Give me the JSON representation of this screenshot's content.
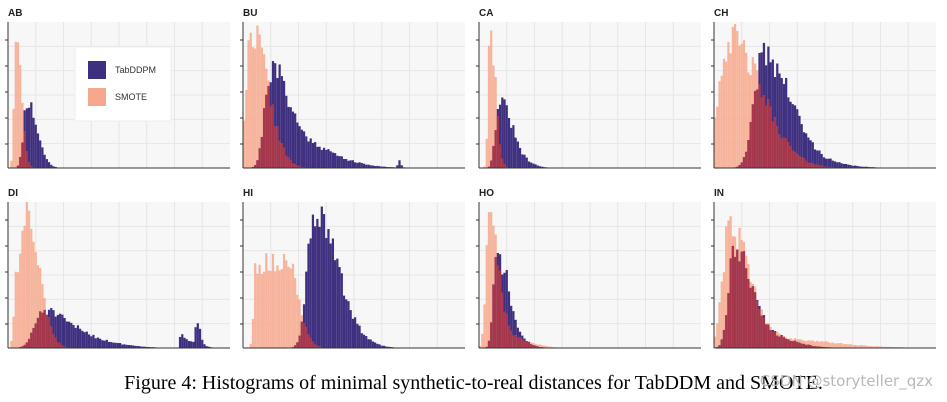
{
  "caption": "Figure 4: Histograms of minimal synthetic-to-real distances for TabDDM and SMOTE.",
  "watermark": "CSDN @storyteller_qzx",
  "colors": {
    "tabddpm": "#3f2f7f",
    "smote": "#f7a88c",
    "overlap": "#a02b44",
    "panel_bg": "#f7f7f7",
    "grid": "#e6e6e6"
  },
  "chart_data": [
    {
      "id": "AB",
      "title": "AB",
      "type": "histogram",
      "bins": 100,
      "xlim": [
        0,
        1
      ],
      "ylim": [
        0,
        1
      ],
      "grid": true,
      "legend": {
        "placement": "top-left",
        "entries": [
          {
            "label": "TabDDPM",
            "color": "#3f2f7f"
          },
          {
            "label": "SMOTE",
            "color": "#f7a88c"
          }
        ]
      },
      "series": [
        {
          "name": "TabDDPM",
          "components": [
            {
              "center": 0.085,
              "width": 0.028,
              "height": 0.46
            }
          ],
          "seed": 11
        },
        {
          "name": "SMOTE",
          "components": [
            {
              "center": 0.035,
              "width": 0.015,
              "height": 0.97
            }
          ],
          "seed": 12
        }
      ]
    },
    {
      "id": "BU",
      "title": "BU",
      "type": "histogram",
      "bins": 100,
      "xlim": [
        0,
        1
      ],
      "ylim": [
        0,
        1
      ],
      "grid": true,
      "series": [
        {
          "name": "TabDDPM",
          "components": [
            {
              "center": 0.12,
              "width": 0.045,
              "height": 0.6
            },
            {
              "center": 0.2,
              "width": 0.09,
              "height": 0.18
            },
            {
              "center": 0.34,
              "width": 0.1,
              "height": 0.04
            },
            {
              "center": 0.7,
              "width": 0.006,
              "height": 0.05
            }
          ],
          "seed": 21
        },
        {
          "name": "SMOTE",
          "components": [
            {
              "center": 0.04,
              "width": 0.045,
              "height": 0.95
            }
          ],
          "seed": 22
        }
      ]
    },
    {
      "id": "CA",
      "title": "CA",
      "type": "histogram",
      "bins": 100,
      "xlim": [
        0,
        1
      ],
      "ylim": [
        0,
        1
      ],
      "grid": true,
      "series": [
        {
          "name": "TabDDPM",
          "components": [
            {
              "center": 0.09,
              "width": 0.03,
              "height": 0.45
            },
            {
              "center": 0.15,
              "width": 0.04,
              "height": 0.08
            }
          ],
          "seed": 31
        },
        {
          "name": "SMOTE",
          "components": [
            {
              "center": 0.05,
              "width": 0.015,
              "height": 0.95
            }
          ],
          "seed": 32
        }
      ]
    },
    {
      "id": "CH",
      "title": "CH",
      "type": "histogram",
      "bins": 100,
      "xlim": [
        0,
        1
      ],
      "ylim": [
        0,
        1
      ],
      "grid": true,
      "series": [
        {
          "name": "TabDDPM",
          "components": [
            {
              "center": 0.22,
              "width": 0.07,
              "height": 0.77
            },
            {
              "center": 0.35,
              "width": 0.1,
              "height": 0.07
            }
          ],
          "seed": 41
        },
        {
          "name": "SMOTE",
          "components": [
            {
              "center": 0.07,
              "width": 0.09,
              "height": 0.88
            }
          ],
          "seed": 42
        }
      ]
    },
    {
      "id": "DI",
      "title": "DI",
      "type": "histogram",
      "bins": 100,
      "xlim": [
        0,
        1
      ],
      "ylim": [
        0,
        1
      ],
      "grid": true,
      "series": [
        {
          "name": "TabDDPM",
          "components": [
            {
              "center": 0.16,
              "width": 0.07,
              "height": 0.26
            },
            {
              "center": 0.35,
              "width": 0.09,
              "height": 0.05
            },
            {
              "center": 0.78,
              "width": 0.01,
              "height": 0.1
            },
            {
              "center": 0.85,
              "width": 0.01,
              "height": 0.14
            },
            {
              "center": 0.82,
              "width": 0.03,
              "height": 0.04
            }
          ],
          "seed": 51
        },
        {
          "name": "SMOTE",
          "components": [
            {
              "center": 0.09,
              "width": 0.035,
              "height": 0.8
            },
            {
              "center": 0.04,
              "width": 0.02,
              "height": 0.55
            }
          ],
          "seed": 52
        }
      ]
    },
    {
      "id": "HI",
      "title": "HI",
      "type": "histogram",
      "bins": 100,
      "xlim": [
        0,
        1
      ],
      "ylim": [
        0,
        1
      ],
      "grid": true,
      "series": [
        {
          "name": "TabDDPM",
          "components": [
            {
              "center": 0.32,
              "width": 0.055,
              "height": 0.93
            },
            {
              "center": 0.43,
              "width": 0.06,
              "height": 0.12
            }
          ],
          "seed": 61
        },
        {
          "name": "SMOTE",
          "plateau": {
            "start": 0.06,
            "end": 0.2,
            "height": 0.58,
            "fall": 0.05
          },
          "seed": 62
        }
      ]
    },
    {
      "id": "HO",
      "title": "HO",
      "type": "histogram",
      "bins": 100,
      "xlim": [
        0,
        1
      ],
      "ylim": [
        0,
        1
      ],
      "grid": true,
      "series": [
        {
          "name": "TabDDPM",
          "components": [
            {
              "center": 0.08,
              "width": 0.028,
              "height": 0.62
            },
            {
              "center": 0.13,
              "width": 0.04,
              "height": 0.1
            }
          ],
          "seed": 71
        },
        {
          "name": "SMOTE",
          "components": [
            {
              "center": 0.045,
              "width": 0.025,
              "height": 0.96
            },
            {
              "center": 0.12,
              "width": 0.06,
              "height": 0.08
            }
          ],
          "seed": 72
        }
      ]
    },
    {
      "id": "IN",
      "title": "IN",
      "type": "histogram",
      "bins": 100,
      "xlim": [
        0,
        1
      ],
      "ylim": [
        0,
        1
      ],
      "grid": true,
      "series": [
        {
          "name": "TabDDPM",
          "components": [
            {
              "center": 0.09,
              "width": 0.045,
              "height": 0.67
            },
            {
              "center": 0.2,
              "width": 0.08,
              "height": 0.1
            }
          ],
          "seed": 81
        },
        {
          "name": "SMOTE",
          "components": [
            {
              "center": 0.07,
              "width": 0.055,
              "height": 0.84
            },
            {
              "center": 0.3,
              "width": 0.15,
              "height": 0.06
            }
          ],
          "seed": 82
        }
      ]
    }
  ]
}
